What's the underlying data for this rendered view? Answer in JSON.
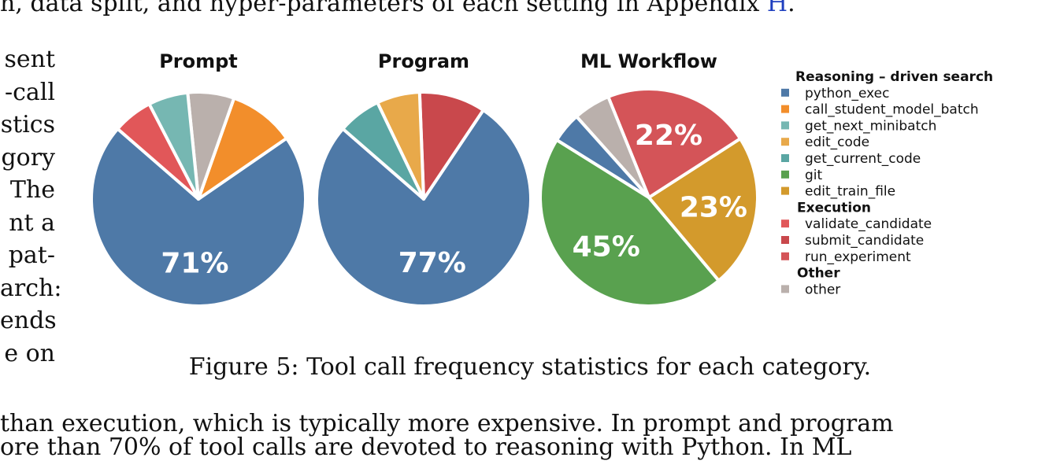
{
  "page": {
    "top_line": {
      "before": "h, data split, and hyper-parameters of each setting in Appendix ",
      "link": "H",
      "after": "."
    },
    "left_fragments": [
      "sent",
      "-call",
      "stics",
      "gory",
      "The",
      "nt a",
      "pat-",
      "arch:",
      "ends",
      "e on"
    ],
    "caption": "Figure 5: Tool call frequency statistics for each category.",
    "bottom_lines": [
      "than execution, which is typically more expensive. In prompt and program",
      "ore than 70% of tool calls are devoted to reasoning with Python. In ML"
    ]
  },
  "chart_data": {
    "type": "pie",
    "colors": {
      "python_exec": "#4e79a7",
      "call_student_model_batch": "#f28e2b",
      "get_next_minibatch": "#76b7b2",
      "edit_code": "#e8a94a",
      "get_current_code": "#5aa6a3",
      "git": "#59a14f",
      "edit_train_file": "#d39a2c",
      "validate_candidate": "#e15759",
      "submit_candidate": "#c9484c",
      "run_experiment": "#d45458",
      "other": "#bab0ac"
    },
    "legend": {
      "position": "right",
      "groups": [
        {
          "title": "Reasoning – driven search",
          "items": [
            "python_exec",
            "call_student_model_batch",
            "get_next_minibatch",
            "edit_code",
            "get_current_code",
            "git",
            "edit_train_file"
          ]
        },
        {
          "title": "Execution",
          "items": [
            "validate_candidate",
            "submit_candidate",
            "run_experiment"
          ]
        },
        {
          "title": "Other",
          "items": [
            "other"
          ]
        }
      ]
    },
    "pies": [
      {
        "title": "Prompt",
        "start_angle": 139,
        "slices": [
          {
            "label": "python_exec",
            "value": 71,
            "display": "71%"
          },
          {
            "label": "call_student_model_batch",
            "value": 10
          },
          {
            "label": "other",
            "value": 7
          },
          {
            "label": "get_next_minibatch",
            "value": 6
          },
          {
            "label": "validate_candidate",
            "value": 6
          }
        ]
      },
      {
        "title": "Program",
        "start_angle": 139,
        "slices": [
          {
            "label": "python_exec",
            "value": 77,
            "display": "77%"
          },
          {
            "label": "submit_candidate",
            "value": 10
          },
          {
            "label": "edit_code",
            "value": 6.5
          },
          {
            "label": "get_current_code",
            "value": 6.5
          }
        ]
      },
      {
        "title": "ML Workflow",
        "start_angle": 148,
        "slices": [
          {
            "label": "git",
            "value": 45,
            "display": "45%"
          },
          {
            "label": "edit_train_file",
            "value": 23,
            "display": "23%"
          },
          {
            "label": "run_experiment",
            "value": 22,
            "display": "22%"
          },
          {
            "label": "other",
            "value": 5.5
          },
          {
            "label": "python_exec",
            "value": 4.5
          }
        ]
      }
    ]
  }
}
